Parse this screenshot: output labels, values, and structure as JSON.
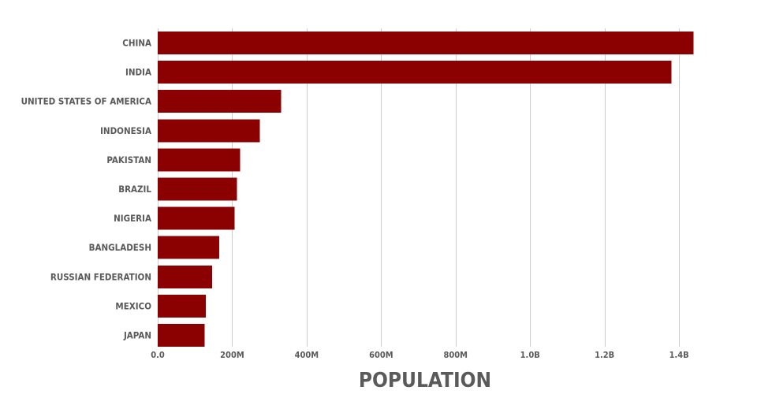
{
  "chart_data": {
    "type": "bar",
    "orientation": "horizontal",
    "categories": [
      "CHINA",
      "INDIA",
      "UNITED STATES OF AMERICA",
      "INDONESIA",
      "PAKISTAN",
      "BRAZIL",
      "NIGERIA",
      "BANGLADESH",
      "RUSSIAN FEDERATION",
      "MEXICO",
      "JAPAN"
    ],
    "values": [
      1439000000,
      1380000000,
      331000000,
      274000000,
      221000000,
      213000000,
      206000000,
      165000000,
      146000000,
      129000000,
      126000000
    ],
    "xlabel": "POPULATION",
    "ylabel": "",
    "xlim": [
      0,
      1440000000
    ],
    "xticks": [
      0,
      200000000,
      400000000,
      600000000,
      800000000,
      1000000000,
      1200000000,
      1400000000
    ],
    "xtick_labels": [
      "0.0",
      "200M",
      "400M",
      "600M",
      "800M",
      "1.0B",
      "1.2B",
      "1.4B"
    ],
    "grid": "vertical",
    "bar_color": "#8b0000",
    "text_color": "#5a5a5a",
    "grid_color": "#cccccc"
  }
}
